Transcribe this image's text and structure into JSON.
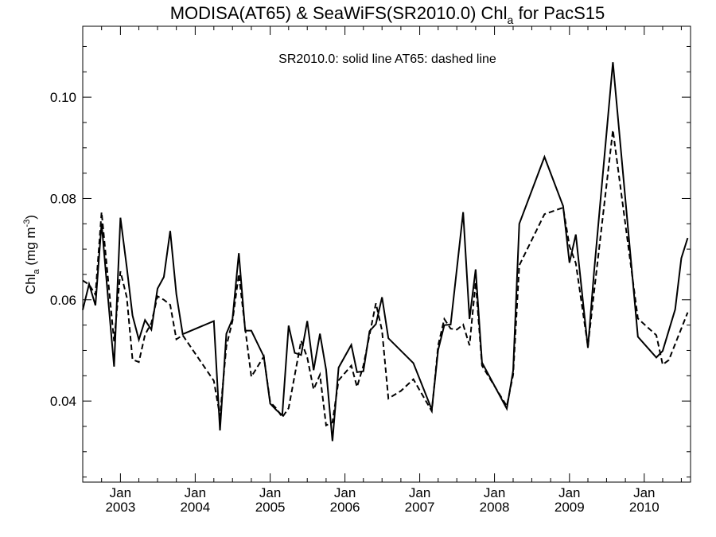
{
  "chart_data": {
    "type": "line",
    "title": {
      "main": "MODISA(AT65) & SeaWiFS(SR2010.0)  Chl",
      "sub": "a",
      "tail": " for PacS15"
    },
    "ylabel": {
      "prefix": "Chl",
      "sub": "a",
      "unit": " (mg m",
      "sup": "-3",
      "close": ")"
    },
    "annotation": "SR2010.0: solid line   AT65: dashed line",
    "xlim": [
      "2002-07-01",
      "2010-08-15"
    ],
    "ylim": [
      0.024,
      0.114
    ],
    "yticks": [
      {
        "value": 0.04,
        "label": "0.04"
      },
      {
        "value": 0.06,
        "label": "0.06"
      },
      {
        "value": 0.08,
        "label": "0.08"
      },
      {
        "value": 0.1,
        "label": "0.10"
      }
    ],
    "xticks": [
      {
        "date": "2003-01-01",
        "month": "Jan",
        "year": "2003"
      },
      {
        "date": "2004-01-01",
        "month": "Jan",
        "year": "2004"
      },
      {
        "date": "2005-01-01",
        "month": "Jan",
        "year": "2005"
      },
      {
        "date": "2006-01-01",
        "month": "Jan",
        "year": "2006"
      },
      {
        "date": "2007-01-01",
        "month": "Jan",
        "year": "2007"
      },
      {
        "date": "2008-01-01",
        "month": "Jan",
        "year": "2008"
      },
      {
        "date": "2009-01-01",
        "month": "Jan",
        "year": "2009"
      },
      {
        "date": "2010-01-01",
        "month": "Jan",
        "year": "2010"
      }
    ],
    "grid": false,
    "series": [
      {
        "name": "SR2010.0",
        "style": "solid",
        "color": "#000000",
        "points": [
          [
            "2002-07-01",
            0.058
          ],
          [
            "2002-08-01",
            0.0631
          ],
          [
            "2002-09-01",
            0.0589
          ],
          [
            "2002-10-01",
            0.0751
          ],
          [
            "2002-11-01",
            0.0606
          ],
          [
            "2002-12-01",
            0.0468
          ],
          [
            "2003-01-01",
            0.0762
          ],
          [
            "2003-02-01",
            0.0664
          ],
          [
            "2003-03-01",
            0.0569
          ],
          [
            "2003-04-01",
            0.0521
          ],
          [
            "2003-05-01",
            0.056
          ],
          [
            "2003-06-01",
            0.0541
          ],
          [
            "2003-07-01",
            0.0622
          ],
          [
            "2003-08-01",
            0.0645
          ],
          [
            "2003-09-01",
            0.0736
          ],
          [
            "2003-10-01",
            0.0611
          ],
          [
            "2003-11-01",
            0.0532
          ],
          [
            "2004-04-01",
            0.0558
          ],
          [
            "2004-05-01",
            0.0342
          ],
          [
            "2004-06-01",
            0.0533
          ],
          [
            "2004-07-01",
            0.0562
          ],
          [
            "2004-08-01",
            0.0692
          ],
          [
            "2004-09-01",
            0.0539
          ],
          [
            "2004-10-01",
            0.0539
          ],
          [
            "2004-12-01",
            0.0488
          ],
          [
            "2005-01-01",
            0.0395
          ],
          [
            "2005-02-01",
            0.0382
          ],
          [
            "2005-03-01",
            0.0372
          ],
          [
            "2005-04-01",
            0.0549
          ],
          [
            "2005-05-01",
            0.0495
          ],
          [
            "2005-06-01",
            0.0491
          ],
          [
            "2005-07-01",
            0.0558
          ],
          [
            "2005-08-01",
            0.0461
          ],
          [
            "2005-09-01",
            0.0533
          ],
          [
            "2005-10-01",
            0.0462
          ],
          [
            "2005-11-01",
            0.0321
          ],
          [
            "2005-12-01",
            0.0466
          ],
          [
            "2006-02-01",
            0.0511
          ],
          [
            "2006-03-01",
            0.0457
          ],
          [
            "2006-04-01",
            0.0459
          ],
          [
            "2006-05-01",
            0.0538
          ],
          [
            "2006-06-01",
            0.0552
          ],
          [
            "2006-07-01",
            0.0605
          ],
          [
            "2006-08-01",
            0.0524
          ],
          [
            "2006-12-01",
            0.0475
          ],
          [
            "2007-03-01",
            0.0383
          ],
          [
            "2007-04-01",
            0.0501
          ],
          [
            "2007-05-01",
            0.055
          ],
          [
            "2007-06-01",
            0.0551
          ],
          [
            "2007-08-01",
            0.0773
          ],
          [
            "2007-09-01",
            0.0562
          ],
          [
            "2007-10-01",
            0.066
          ],
          [
            "2007-11-01",
            0.0476
          ],
          [
            "2008-03-01",
            0.0385
          ],
          [
            "2008-04-01",
            0.046
          ],
          [
            "2008-05-01",
            0.075
          ],
          [
            "2008-09-01",
            0.0882
          ],
          [
            "2008-12-01",
            0.0785
          ],
          [
            "2009-01-01",
            0.0673
          ],
          [
            "2009-02-01",
            0.0729
          ],
          [
            "2009-04-01",
            0.0505
          ],
          [
            "2009-05-01",
            0.0655
          ],
          [
            "2009-08-01",
            0.1069
          ],
          [
            "2009-12-01",
            0.0527
          ],
          [
            "2010-03-01",
            0.0486
          ],
          [
            "2010-04-01",
            0.0499
          ],
          [
            "2010-06-01",
            0.0581
          ],
          [
            "2010-07-01",
            0.0682
          ],
          [
            "2010-08-01",
            0.0722
          ]
        ]
      },
      {
        "name": "AT65",
        "style": "dashed",
        "color": "#000000",
        "points": [
          [
            "2002-07-01",
            0.0638
          ],
          [
            "2002-08-01",
            0.063
          ],
          [
            "2002-09-01",
            0.061
          ],
          [
            "2002-10-01",
            0.0773
          ],
          [
            "2002-12-01",
            0.0518
          ],
          [
            "2003-01-01",
            0.0656
          ],
          [
            "2003-02-01",
            0.0605
          ],
          [
            "2003-03-01",
            0.0482
          ],
          [
            "2003-04-01",
            0.0477
          ],
          [
            "2003-05-01",
            0.0531
          ],
          [
            "2003-06-01",
            0.0554
          ],
          [
            "2003-07-01",
            0.0607
          ],
          [
            "2003-08-01",
            0.06
          ],
          [
            "2003-09-01",
            0.059
          ],
          [
            "2003-10-01",
            0.0522
          ],
          [
            "2003-11-01",
            0.053
          ],
          [
            "2004-04-01",
            0.044
          ],
          [
            "2004-05-01",
            0.037
          ],
          [
            "2004-06-01",
            0.0508
          ],
          [
            "2004-07-01",
            0.0558
          ],
          [
            "2004-08-01",
            0.0651
          ],
          [
            "2004-09-01",
            0.0543
          ],
          [
            "2004-10-01",
            0.0448
          ],
          [
            "2004-12-01",
            0.0488
          ],
          [
            "2005-01-01",
            0.0398
          ],
          [
            "2005-02-01",
            0.0385
          ],
          [
            "2005-03-01",
            0.0368
          ],
          [
            "2005-04-01",
            0.0386
          ],
          [
            "2005-06-01",
            0.0519
          ],
          [
            "2005-07-01",
            0.0486
          ],
          [
            "2005-08-01",
            0.0423
          ],
          [
            "2005-09-01",
            0.0452
          ],
          [
            "2005-10-01",
            0.0352
          ],
          [
            "2005-11-01",
            0.0358
          ],
          [
            "2005-12-01",
            0.0441
          ],
          [
            "2006-02-01",
            0.047
          ],
          [
            "2006-03-01",
            0.0428
          ],
          [
            "2006-04-01",
            0.047
          ],
          [
            "2006-06-01",
            0.0593
          ],
          [
            "2006-07-01",
            0.0539
          ],
          [
            "2006-08-01",
            0.0405
          ],
          [
            "2006-10-01",
            0.042
          ],
          [
            "2006-12-01",
            0.0443
          ],
          [
            "2007-03-01",
            0.038
          ],
          [
            "2007-04-01",
            0.051
          ],
          [
            "2007-05-01",
            0.0562
          ],
          [
            "2007-06-01",
            0.0543
          ],
          [
            "2007-07-01",
            0.0541
          ],
          [
            "2007-08-01",
            0.0551
          ],
          [
            "2007-09-01",
            0.051
          ],
          [
            "2007-10-01",
            0.0635
          ],
          [
            "2007-11-01",
            0.047
          ],
          [
            "2008-03-01",
            0.039
          ],
          [
            "2008-04-01",
            0.0452
          ],
          [
            "2008-05-01",
            0.0668
          ],
          [
            "2008-09-01",
            0.0769
          ],
          [
            "2008-12-01",
            0.0782
          ],
          [
            "2009-01-01",
            0.0706
          ],
          [
            "2009-02-01",
            0.0672
          ],
          [
            "2009-04-01",
            0.0508
          ],
          [
            "2009-05-01",
            0.0615
          ],
          [
            "2009-08-01",
            0.0935
          ],
          [
            "2009-12-01",
            0.0563
          ],
          [
            "2010-03-01",
            0.053
          ],
          [
            "2010-04-01",
            0.0472
          ],
          [
            "2010-05-01",
            0.0481
          ],
          [
            "2010-08-01",
            0.0575
          ]
        ]
      }
    ]
  }
}
